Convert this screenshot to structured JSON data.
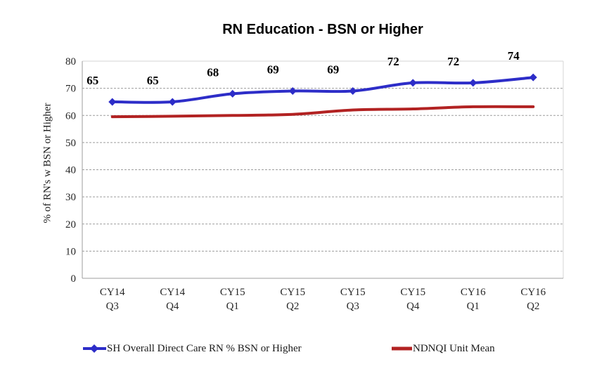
{
  "title": "RN Education - BSN or Higher",
  "y_axis_title": "% of RN's w BSN or Higher",
  "chart_data": {
    "type": "line",
    "categories": [
      "CY14 Q3",
      "CY14 Q4",
      "CY15 Q1",
      "CY15 Q2",
      "CY15 Q3",
      "CY15 Q4",
      "CY16 Q1",
      "CY16 Q2"
    ],
    "series": [
      {
        "name": "SH Overall Direct Care RN % BSN or Higher",
        "color": "#2d2dc8",
        "marker": "diamond",
        "line_width": 4,
        "values": [
          65,
          65,
          68,
          69,
          69,
          72,
          72,
          74
        ],
        "data_labels": [
          "65",
          "65",
          "68",
          "69",
          "69",
          "72",
          "72",
          "74"
        ]
      },
      {
        "name": "NDNQI Unit Mean",
        "color": "#b22222",
        "marker": "none",
        "line_width": 4,
        "values": [
          59.5,
          59.7,
          60,
          60.4,
          62,
          62.4,
          63.2,
          63.2
        ],
        "data_labels": null
      }
    ],
    "yticks": [
      0,
      10,
      20,
      30,
      40,
      50,
      60,
      70,
      80
    ],
    "ylim": [
      0,
      80
    ],
    "grid": "horizontal-dashed",
    "grid_color": "#9d9d9d",
    "legend_position": "bottom"
  }
}
